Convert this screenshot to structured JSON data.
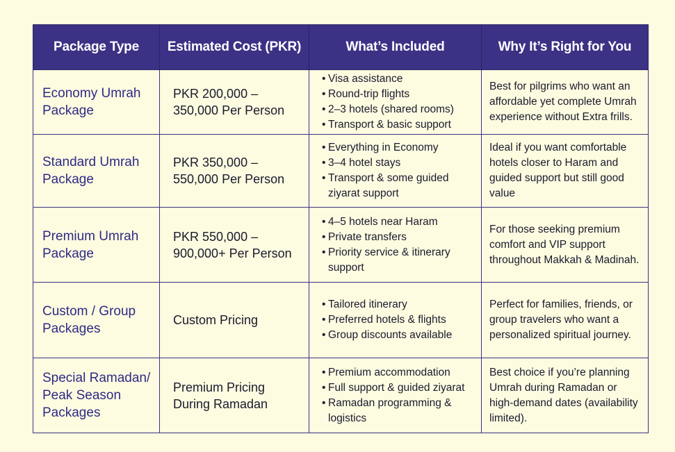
{
  "colors": {
    "background": "#fdfbe0",
    "header_bg": "#3b3285",
    "header_text": "#ffffff",
    "package_text": "#2f2a86",
    "border": "#3b3285"
  },
  "table": {
    "headers": [
      "Package Type",
      "Estimated Cost (PKR)",
      "What’s Included",
      "Why It’s Right for You"
    ],
    "rows": [
      {
        "type": "Economy Umrah Package",
        "cost": "PKR 200,000 – 350,000 Per Person",
        "included": [
          "Visa assistance",
          "Round-trip flights",
          "2–3 hotels (shared rooms)",
          "Transport & basic support"
        ],
        "why": "Best for pilgrims who want an affordable yet complete Umrah experience without Extra frills."
      },
      {
        "type": "Standard Umrah Package",
        "cost": "PKR 350,000 – 550,000 Per Person",
        "included": [
          "Everything in Economy",
          "3–4 hotel stays",
          "Transport & some guided ziyarat support"
        ],
        "why": "Ideal if you want comfortable hotels closer to Haram and guided support but still good value"
      },
      {
        "type": "Premium Umrah Package",
        "cost": "PKR 550,000 – 900,000+ Per Person",
        "included": [
          "4–5 hotels near Haram",
          "Private transfers",
          "Priority service & itinerary support"
        ],
        "why": "For those seeking premium comfort and VIP support throughout Makkah & Madinah."
      },
      {
        "type": "Custom / Group Packages",
        "cost": "Custom Pricing",
        "included": [
          "Tailored itinerary",
          "Preferred hotels & flights",
          "Group discounts available"
        ],
        "why": "Perfect for families, friends, or group travelers who want a personalized spiritual journey."
      },
      {
        "type": "Special Ramadan/ Peak Season Packages",
        "cost": "Premium Pricing During Ramadan",
        "included": [
          "Premium accommodation",
          "Full support & guided ziyarat",
          "Ramadan programming & logistics"
        ],
        "why": "Best choice if you’re planning Umrah during Ramadan or high-demand dates (availability limited)."
      }
    ]
  }
}
